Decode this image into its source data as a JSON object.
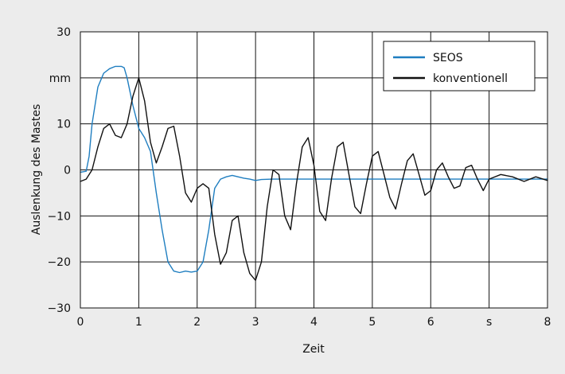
{
  "chart_data": {
    "type": "line",
    "xlabel": "Zeit",
    "ylabel": "Auslenkung des Mastes",
    "xlim": [
      0,
      8
    ],
    "ylim": [
      -30,
      30
    ],
    "grid": true,
    "legend_position": "top-right",
    "x_ticks": [
      {
        "value": 0,
        "label": "0"
      },
      {
        "value": 1,
        "label": "1"
      },
      {
        "value": 2,
        "label": "2"
      },
      {
        "value": 3,
        "label": "3"
      },
      {
        "value": 4,
        "label": "4"
      },
      {
        "value": 5,
        "label": "5"
      },
      {
        "value": 6,
        "label": "6"
      },
      {
        "value": 7,
        "label": "s"
      },
      {
        "value": 8,
        "label": "8"
      }
    ],
    "y_ticks": [
      {
        "value": 30,
        "label": "30"
      },
      {
        "value": 20,
        "label": "mm"
      },
      {
        "value": 10,
        "label": "10"
      },
      {
        "value": 0,
        "label": "0"
      },
      {
        "value": -10,
        "label": "−10"
      },
      {
        "value": -20,
        "label": "−20"
      },
      {
        "value": -30,
        "label": "−30"
      }
    ],
    "series": [
      {
        "name": "SEOS",
        "color": "#1f7ec0",
        "x": [
          0,
          0.1,
          0.15,
          0.2,
          0.3,
          0.4,
          0.5,
          0.6,
          0.7,
          0.75,
          0.8,
          0.9,
          1.0,
          1.1,
          1.2,
          1.3,
          1.4,
          1.5,
          1.6,
          1.7,
          1.8,
          1.9,
          2.0,
          2.1,
          2.2,
          2.3,
          2.4,
          2.5,
          2.6,
          2.7,
          2.8,
          2.9,
          3.0,
          3.1,
          3.3,
          3.5,
          4.0,
          4.5,
          5.0,
          5.5,
          6.0,
          6.5,
          7.0,
          7.5,
          8.0
        ],
        "y": [
          -0.5,
          -0.3,
          3,
          10,
          18,
          21,
          22,
          22.5,
          22.5,
          22.2,
          20,
          14,
          9,
          7,
          4,
          -5,
          -13,
          -20,
          -22,
          -22.3,
          -22,
          -22.2,
          -22,
          -20,
          -13,
          -4,
          -2,
          -1.5,
          -1.2,
          -1.5,
          -1.8,
          -2,
          -2.3,
          -2.1,
          -2,
          -2,
          -2,
          -2,
          -2,
          -2,
          -2,
          -2,
          -2,
          -2,
          -2
        ]
      },
      {
        "name": "konventionell",
        "color": "#111111",
        "x": [
          0,
          0.1,
          0.2,
          0.3,
          0.4,
          0.5,
          0.6,
          0.7,
          0.8,
          0.9,
          1.0,
          1.1,
          1.2,
          1.3,
          1.4,
          1.5,
          1.6,
          1.7,
          1.8,
          1.9,
          2.0,
          2.1,
          2.2,
          2.3,
          2.4,
          2.5,
          2.6,
          2.7,
          2.8,
          2.9,
          3.0,
          3.1,
          3.2,
          3.3,
          3.4,
          3.5,
          3.6,
          3.7,
          3.8,
          3.9,
          4.0,
          4.1,
          4.2,
          4.3,
          4.4,
          4.5,
          4.6,
          4.7,
          4.8,
          4.9,
          5.0,
          5.1,
          5.2,
          5.3,
          5.4,
          5.5,
          5.6,
          5.7,
          5.8,
          5.9,
          6.0,
          6.1,
          6.2,
          6.3,
          6.4,
          6.5,
          6.6,
          6.7,
          6.8,
          6.9,
          7.0,
          7.2,
          7.4,
          7.6,
          7.8,
          8.0
        ],
        "y": [
          -2.5,
          -2,
          0,
          5,
          9,
          10,
          7.5,
          7,
          10,
          16,
          20,
          15,
          6,
          1.5,
          5,
          9,
          9.5,
          3,
          -5,
          -7,
          -4,
          -3,
          -4,
          -14,
          -20.5,
          -18,
          -11,
          -10,
          -18,
          -22.5,
          -24,
          -20,
          -8,
          0,
          -1,
          -10,
          -13,
          -3,
          5,
          7,
          1,
          -9,
          -11,
          -2,
          5,
          6,
          -1,
          -8,
          -9.5,
          -3,
          3,
          4,
          -1,
          -6,
          -8.5,
          -3,
          2,
          3.5,
          -1,
          -5.5,
          -4.5,
          0,
          1.5,
          -1.5,
          -4,
          -3.5,
          0.5,
          1,
          -2,
          -4.5,
          -2,
          -1,
          -1.5,
          -2.5,
          -1.5,
          -2.3
        ]
      }
    ]
  }
}
